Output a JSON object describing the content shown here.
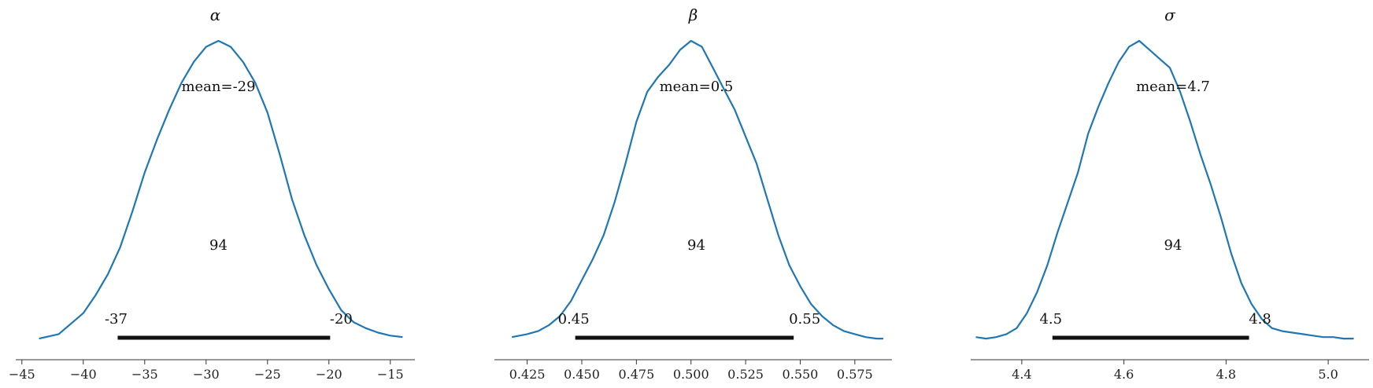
{
  "chart_data": [
    {
      "type": "line",
      "title": "α",
      "xlabel": "",
      "ylabel": "",
      "xlim": [
        -45.5,
        -13
      ],
      "xticks": [
        -45,
        -40,
        -35,
        -30,
        -25,
        -20,
        -15
      ],
      "tick_labels": [
        "−45",
        "−40",
        "−35",
        "−30",
        "−25",
        "−20",
        "−15"
      ],
      "density": {
        "x": [
          -43.6,
          -42,
          -40,
          -39,
          -38,
          -37,
          -36,
          -35,
          -34,
          -33,
          -32,
          -31,
          -30,
          -29.5,
          -29,
          -28.5,
          -28,
          -27,
          -26,
          -25,
          -24,
          -23,
          -22,
          -21,
          -20,
          -19,
          -18,
          -17,
          -16,
          -15,
          -14
        ],
        "y": [
          0.005,
          0.02,
          0.09,
          0.15,
          0.22,
          0.31,
          0.43,
          0.56,
          0.67,
          0.77,
          0.86,
          0.93,
          0.98,
          0.99,
          1.0,
          0.99,
          0.98,
          0.93,
          0.86,
          0.76,
          0.62,
          0.47,
          0.35,
          0.25,
          0.17,
          0.1,
          0.06,
          0.04,
          0.025,
          0.015,
          0.01
        ]
      },
      "mean_label": "mean=-29",
      "hdi_prob_label": "94",
      "hdi": [
        -37.2,
        -19.9
      ],
      "hdi_low_label": "-37",
      "hdi_high_label": "-20",
      "line_color": "#1f77b4"
    },
    {
      "type": "line",
      "title": "β",
      "xlabel": "",
      "ylabel": "",
      "xlim": [
        0.41,
        0.592
      ],
      "xticks": [
        0.425,
        0.45,
        0.475,
        0.5,
        0.525,
        0.55,
        0.575
      ],
      "tick_labels": [
        "0.425",
        "0.450",
        "0.475",
        "0.500",
        "0.525",
        "0.550",
        "0.575"
      ],
      "density": {
        "x": [
          0.418,
          0.425,
          0.43,
          0.435,
          0.44,
          0.445,
          0.45,
          0.455,
          0.46,
          0.465,
          0.47,
          0.475,
          0.48,
          0.485,
          0.49,
          0.495,
          0.5,
          0.505,
          0.51,
          0.515,
          0.52,
          0.525,
          0.53,
          0.535,
          0.54,
          0.545,
          0.55,
          0.555,
          0.56,
          0.565,
          0.57,
          0.575,
          0.58,
          0.585,
          0.588
        ],
        "y": [
          0.01,
          0.02,
          0.03,
          0.05,
          0.08,
          0.13,
          0.2,
          0.27,
          0.35,
          0.46,
          0.59,
          0.73,
          0.83,
          0.88,
          0.92,
          0.97,
          1.0,
          0.98,
          0.91,
          0.84,
          0.77,
          0.68,
          0.59,
          0.47,
          0.35,
          0.25,
          0.18,
          0.12,
          0.08,
          0.05,
          0.03,
          0.02,
          0.01,
          0.005,
          0.005
        ]
      },
      "mean_label": "mean=0.5",
      "hdi_prob_label": "94",
      "hdi": [
        0.447,
        0.547
      ],
      "hdi_low_label": "0.45",
      "hdi_high_label": "0.55",
      "line_color": "#1f77b4"
    },
    {
      "type": "line",
      "title": "σ",
      "xlabel": "",
      "ylabel": "",
      "xlim": [
        4.3,
        5.08
      ],
      "xticks": [
        4.4,
        4.6,
        4.8,
        5.0
      ],
      "tick_labels": [
        "4.4",
        "4.6",
        "4.8",
        "5.0"
      ],
      "density": {
        "x": [
          4.31,
          4.33,
          4.35,
          4.37,
          4.39,
          4.41,
          4.43,
          4.45,
          4.47,
          4.49,
          4.51,
          4.53,
          4.55,
          4.57,
          4.59,
          4.61,
          4.63,
          4.65,
          4.67,
          4.69,
          4.71,
          4.73,
          4.75,
          4.77,
          4.79,
          4.81,
          4.83,
          4.85,
          4.87,
          4.89,
          4.91,
          4.93,
          4.95,
          4.97,
          4.99,
          5.01,
          5.03,
          5.05
        ],
        "y": [
          0.01,
          0.005,
          0.01,
          0.02,
          0.04,
          0.09,
          0.16,
          0.25,
          0.36,
          0.46,
          0.56,
          0.69,
          0.78,
          0.86,
          0.93,
          0.98,
          1.0,
          0.97,
          0.94,
          0.91,
          0.83,
          0.73,
          0.62,
          0.52,
          0.41,
          0.29,
          0.19,
          0.12,
          0.07,
          0.04,
          0.03,
          0.025,
          0.02,
          0.015,
          0.01,
          0.01,
          0.005,
          0.005
        ]
      },
      "mean_label": "mean=4.7",
      "hdi_prob_label": "94",
      "hdi": [
        4.46,
        4.845
      ],
      "hdi_low_label": "4.5",
      "hdi_high_label": "4.8",
      "line_color": "#1f77b4"
    }
  ]
}
